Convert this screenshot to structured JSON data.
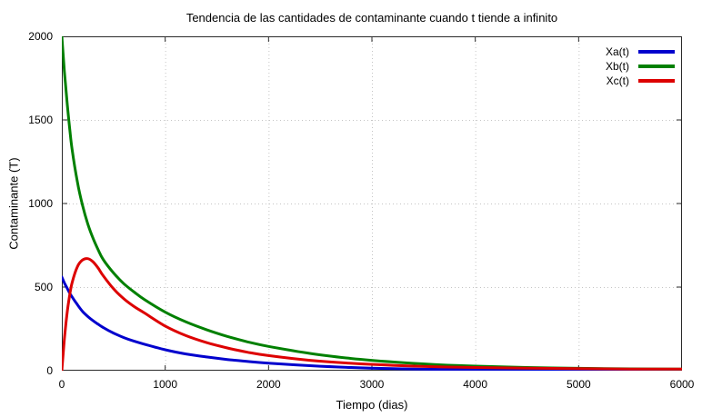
{
  "window": {
    "background": "#ffffff"
  },
  "chart_data": {
    "type": "line",
    "title": "Tendencia de las cantidades de contaminante cuando t tiende a infinito",
    "xlabel": "Tiempo (dias)",
    "ylabel": "Contaminante (T)",
    "xlim": [
      0,
      6000
    ],
    "ylim": [
      0,
      2000
    ],
    "x_ticks": [
      0,
      1000,
      2000,
      3000,
      4000,
      5000,
      6000
    ],
    "y_ticks": [
      0,
      500,
      1000,
      1500,
      2000
    ],
    "grid": true,
    "grid_style": "dotted",
    "grid_color": "#c4c4c4",
    "frame_color": "#2a2a2a",
    "legend_position": "top-right",
    "x": [
      0,
      25,
      50,
      75,
      100,
      150,
      200,
      250,
      300,
      350,
      400,
      500,
      600,
      700,
      800,
      1000,
      1200,
      1400,
      1600,
      1800,
      2000,
      2400,
      2800,
      3200,
      3600,
      4000,
      4500,
      5000,
      5500,
      6000
    ],
    "series": [
      {
        "name": "Xa(t)",
        "color": "#0000cd",
        "values": [
          560,
          525,
          495,
          465,
          440,
          395,
          355,
          325,
          300,
          278,
          258,
          225,
          198,
          176,
          158,
          125,
          100,
          82,
          67,
          55,
          45,
          30,
          19,
          12,
          8,
          6,
          4,
          3,
          2,
          2
        ]
      },
      {
        "name": "Xb(t)",
        "color": "#008000",
        "values": [
          2000,
          1790,
          1610,
          1455,
          1320,
          1130,
          990,
          880,
          795,
          725,
          665,
          585,
          520,
          470,
          425,
          350,
          292,
          245,
          205,
          172,
          145,
          103,
          73,
          52,
          37,
          27,
          19,
          14,
          11,
          9
        ]
      },
      {
        "name": "Xc(t)",
        "color": "#dd0000",
        "values": [
          0,
          190,
          340,
          448,
          528,
          622,
          662,
          670,
          652,
          615,
          568,
          490,
          430,
          383,
          345,
          267,
          210,
          168,
          136,
          110,
          90,
          62,
          44,
          32,
          24,
          19,
          15,
          12,
          10,
          9
        ]
      }
    ]
  }
}
